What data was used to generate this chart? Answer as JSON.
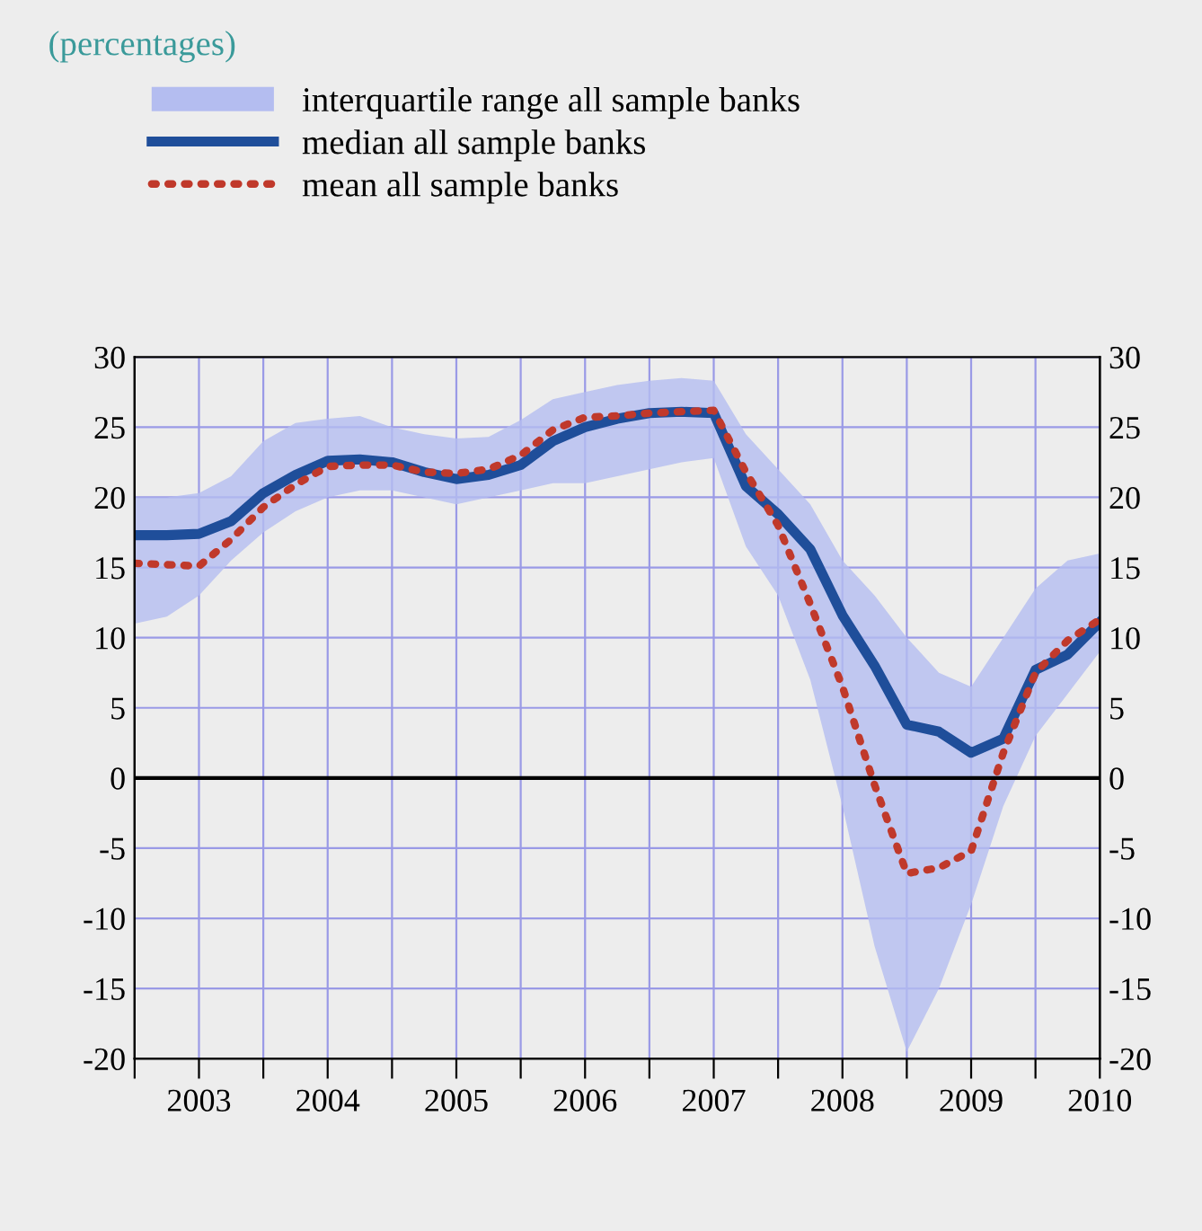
{
  "chart_data": {
    "type": "line",
    "title": "(percentages)",
    "x": [
      2003.0,
      2003.25,
      2003.5,
      2003.75,
      2004.0,
      2004.25,
      2004.5,
      2004.75,
      2005.0,
      2005.25,
      2005.5,
      2005.75,
      2006.0,
      2006.25,
      2006.5,
      2006.75,
      2007.0,
      2007.25,
      2007.5,
      2007.75,
      2008.0,
      2008.25,
      2008.5,
      2008.75,
      2009.0,
      2009.25,
      2009.5,
      2009.75,
      2010.0,
      2010.25,
      2010.5
    ],
    "series": [
      {
        "name": "interquartile range all sample banks",
        "type": "area",
        "color": "#b4bdf0",
        "values": [
          null,
          null,
          null,
          null,
          null,
          null,
          null,
          null,
          null,
          null,
          null,
          null,
          null,
          null,
          null,
          null,
          null,
          null,
          null,
          null,
          null,
          null,
          null,
          null,
          null,
          null,
          null,
          null,
          null,
          null,
          null
        ],
        "lower": [
          11,
          11.5,
          13,
          15.5,
          17.5,
          19,
          20,
          20.5,
          20.5,
          20,
          19.5,
          20,
          20.5,
          21,
          21,
          21.5,
          22,
          22.5,
          22.8,
          16.5,
          13,
          7,
          -2,
          -12,
          -19.5,
          -15,
          -9,
          -2,
          3,
          6,
          9
        ],
        "upper": [
          20,
          20,
          20.3,
          21.5,
          24,
          25.3,
          25.6,
          25.8,
          25,
          24.5,
          24.2,
          24.3,
          25.5,
          27,
          27.5,
          28,
          28.3,
          28.5,
          28.3,
          24.5,
          22,
          19.5,
          15.5,
          13,
          10,
          7.5,
          6.5,
          10,
          13.5,
          15.5,
          16
        ]
      },
      {
        "name": "median all sample banks",
        "color": "#1f4e9a",
        "line_style": "solid",
        "values": [
          17.3,
          17.3,
          17.4,
          18.3,
          20.3,
          21.6,
          22.6,
          22.7,
          22.5,
          21.8,
          21.3,
          21.6,
          22.3,
          24.0,
          25.0,
          25.6,
          26.0,
          26.1,
          26.0,
          20.8,
          18.8,
          16.3,
          11.6,
          8.0,
          3.8,
          3.3,
          1.8,
          2.8,
          7.7,
          8.8,
          11.1
        ]
      },
      {
        "name": "mean all sample banks",
        "color": "#c0392b",
        "line_style": "dotted",
        "values": [
          15.3,
          15.2,
          15.1,
          17.0,
          19.3,
          20.9,
          22.2,
          22.3,
          22.3,
          21.8,
          21.7,
          22.0,
          23.0,
          24.8,
          25.7,
          25.8,
          26.0,
          26.1,
          26.2,
          21.8,
          18.0,
          12.4,
          6.5,
          -0.5,
          -6.8,
          -6.4,
          -5.2,
          1.8,
          7.5,
          9.8,
          11.3
        ]
      }
    ],
    "xlim": [
      2003.0,
      2010.5
    ],
    "xticks": [
      {
        "value": 2003.0,
        "label": null
      },
      {
        "value": 2003.5,
        "label": "2003"
      },
      {
        "value": 2004.0,
        "label": null
      },
      {
        "value": 2004.5,
        "label": "2004"
      },
      {
        "value": 2005.0,
        "label": null
      },
      {
        "value": 2005.5,
        "label": "2005"
      },
      {
        "value": 2006.0,
        "label": null
      },
      {
        "value": 2006.5,
        "label": "2006"
      },
      {
        "value": 2007.0,
        "label": null
      },
      {
        "value": 2007.5,
        "label": "2007"
      },
      {
        "value": 2008.0,
        "label": null
      },
      {
        "value": 2008.5,
        "label": "2008"
      },
      {
        "value": 2009.0,
        "label": null
      },
      {
        "value": 2009.5,
        "label": "2009"
      },
      {
        "value": 2010.0,
        "label": null
      },
      {
        "value": 2010.5,
        "label": "2010"
      }
    ],
    "ylim": [
      -20,
      30
    ],
    "yticks": [
      -20,
      -15,
      -10,
      -5,
      0,
      5,
      10,
      15,
      20,
      25,
      30
    ],
    "y2lim": [
      -20,
      30
    ],
    "y2ticks": [
      -20,
      -15,
      -10,
      -5,
      0,
      5,
      10,
      15,
      20,
      25,
      30
    ],
    "ref_lines": [
      {
        "axis": "y",
        "value": 0,
        "color": "#000000",
        "line_style": "solid"
      }
    ],
    "grid": true,
    "legend": "top left"
  }
}
